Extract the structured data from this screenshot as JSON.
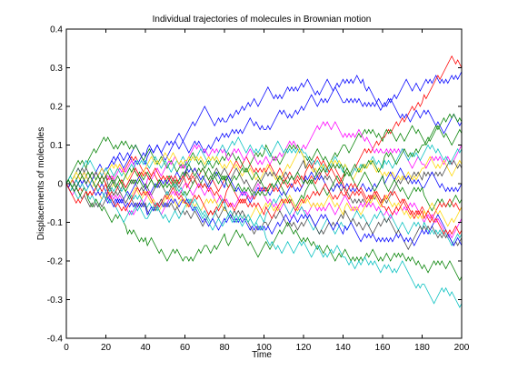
{
  "chart_data": {
    "type": "line",
    "title": "Individual trajectories of molecules in Brownian motion",
    "xlabel": "Time",
    "ylabel": "Displacements of molecules",
    "xlim": [
      0,
      200
    ],
    "ylim": [
      -0.4,
      0.4
    ],
    "xticks": [
      0,
      20,
      40,
      60,
      80,
      100,
      120,
      140,
      160,
      180,
      200
    ],
    "yticks": [
      -0.4,
      -0.3,
      -0.2,
      -0.1,
      0,
      0.1,
      0.2,
      0.3,
      0.4
    ],
    "ytick_labels": [
      "-0.4",
      "-0.3",
      "-0.2",
      "-0.1",
      "0",
      "0.1",
      "0.2",
      "0.3",
      "0.4"
    ],
    "grid": false,
    "legend": "none",
    "step_size": 0.01,
    "series": [
      {
        "color": "#0000ff",
        "values": [
          [
            0,
            0
          ],
          [
            20,
            0.05
          ],
          [
            40,
            0.08
          ],
          [
            60,
            0.12
          ],
          [
            80,
            0.17
          ],
          [
            100,
            0.23
          ],
          [
            120,
            0.25
          ],
          [
            140,
            0.27
          ],
          [
            150,
            0.26
          ],
          [
            160,
            0.19
          ],
          [
            180,
            0.25
          ],
          [
            200,
            0.29
          ]
        ]
      },
      {
        "color": "#ff0000",
        "values": [
          [
            0,
            0
          ],
          [
            20,
            0.02
          ],
          [
            40,
            0.05
          ],
          [
            60,
            0.03
          ],
          [
            80,
            0.0
          ],
          [
            100,
            0.04
          ],
          [
            120,
            0.0
          ],
          [
            140,
            0.02
          ],
          [
            150,
            0.08
          ],
          [
            160,
            0.11
          ],
          [
            180,
            0.22
          ],
          [
            200,
            0.3
          ]
        ]
      },
      {
        "color": "#0000ff",
        "values": [
          [
            0,
            0
          ],
          [
            20,
            0.03
          ],
          [
            40,
            0.06
          ],
          [
            60,
            0.1
          ],
          [
            80,
            0.12
          ],
          [
            100,
            0.15
          ],
          [
            120,
            0.19
          ],
          [
            140,
            0.22
          ],
          [
            160,
            0.2
          ],
          [
            180,
            0.18
          ],
          [
            200,
            0.16
          ]
        ]
      },
      {
        "color": "#008000",
        "values": [
          [
            0,
            0
          ],
          [
            10,
            0.05
          ],
          [
            20,
            0.11
          ],
          [
            30,
            0.11
          ],
          [
            40,
            0.07
          ],
          [
            60,
            0.06
          ],
          [
            80,
            0.06
          ],
          [
            100,
            0.09
          ],
          [
            120,
            0.08
          ],
          [
            140,
            0.11
          ],
          [
            160,
            0.12
          ],
          [
            180,
            0.12
          ],
          [
            200,
            0.15
          ]
        ]
      },
      {
        "color": "#ff00ff",
        "values": [
          [
            0,
            0
          ],
          [
            20,
            0.03
          ],
          [
            40,
            0.0
          ],
          [
            60,
            0.05
          ],
          [
            80,
            0.08
          ],
          [
            100,
            0.06
          ],
          [
            120,
            0.1
          ],
          [
            140,
            0.12
          ],
          [
            160,
            0.09
          ],
          [
            180,
            0.06
          ],
          [
            200,
            0.1
          ]
        ]
      },
      {
        "color": "#00bfbf",
        "values": [
          [
            0,
            0
          ],
          [
            20,
            0.04
          ],
          [
            40,
            0.06
          ],
          [
            60,
            0.05
          ],
          [
            80,
            0.09
          ],
          [
            100,
            0.1
          ],
          [
            120,
            0.07
          ],
          [
            140,
            0.04
          ],
          [
            160,
            0.05
          ],
          [
            180,
            0.07
          ],
          [
            200,
            0.08
          ]
        ]
      },
      {
        "color": "#ffd700",
        "values": [
          [
            0,
            0
          ],
          [
            20,
            0.02
          ],
          [
            40,
            0.04
          ],
          [
            60,
            0.07
          ],
          [
            80,
            0.05
          ],
          [
            100,
            0.03
          ],
          [
            120,
            0.06
          ],
          [
            140,
            0.04
          ],
          [
            160,
            0.02
          ],
          [
            180,
            0.05
          ],
          [
            200,
            0.06
          ]
        ]
      },
      {
        "color": "#444444",
        "values": [
          [
            0,
            0
          ],
          [
            20,
            0.01
          ],
          [
            40,
            -0.02
          ],
          [
            60,
            0.02
          ],
          [
            80,
            0.04
          ],
          [
            100,
            0.02
          ],
          [
            120,
            0.05
          ],
          [
            140,
            0.0
          ],
          [
            160,
            -0.03
          ],
          [
            180,
            0.02
          ],
          [
            200,
            0.04
          ]
        ]
      },
      {
        "color": "#0000ff",
        "values": [
          [
            0,
            0
          ],
          [
            20,
            -0.03
          ],
          [
            40,
            -0.01
          ],
          [
            60,
            0.03
          ],
          [
            80,
            0.0
          ],
          [
            100,
            -0.02
          ],
          [
            120,
            0.01
          ],
          [
            140,
            -0.02
          ],
          [
            160,
            0.01
          ],
          [
            180,
            -0.02
          ],
          [
            200,
            0.0
          ]
        ]
      },
      {
        "color": "#008000",
        "values": [
          [
            0,
            0
          ],
          [
            20,
            0.0
          ],
          [
            40,
            0.02
          ],
          [
            60,
            -0.02
          ],
          [
            80,
            0.01
          ],
          [
            100,
            0.0
          ],
          [
            120,
            -0.03
          ],
          [
            140,
            0.02
          ],
          [
            160,
            0.01
          ],
          [
            180,
            -0.02
          ],
          [
            200,
            -0.05
          ]
        ]
      },
      {
        "color": "#ff0000",
        "values": [
          [
            0,
            0
          ],
          [
            20,
            -0.01
          ],
          [
            40,
            0.03
          ],
          [
            60,
            0.0
          ],
          [
            80,
            -0.03
          ],
          [
            100,
            -0.01
          ],
          [
            120,
            0.02
          ],
          [
            140,
            -0.01
          ],
          [
            160,
            -0.04
          ],
          [
            180,
            -0.06
          ],
          [
            200,
            -0.07
          ]
        ]
      },
      {
        "color": "#ff00ff",
        "values": [
          [
            0,
            0
          ],
          [
            20,
            -0.02
          ],
          [
            40,
            -0.04
          ],
          [
            60,
            -0.01
          ],
          [
            80,
            -0.05
          ],
          [
            100,
            -0.03
          ],
          [
            120,
            -0.06
          ],
          [
            140,
            -0.04
          ],
          [
            160,
            -0.07
          ],
          [
            180,
            -0.09
          ],
          [
            200,
            -0.1
          ]
        ]
      },
      {
        "color": "#ffd700",
        "values": [
          [
            0,
            0
          ],
          [
            20,
            -0.04
          ],
          [
            40,
            -0.02
          ],
          [
            60,
            -0.05
          ],
          [
            80,
            -0.08
          ],
          [
            100,
            -0.06
          ],
          [
            120,
            -0.04
          ],
          [
            140,
            -0.07
          ],
          [
            160,
            -0.05
          ],
          [
            180,
            -0.08
          ],
          [
            200,
            -0.06
          ]
        ]
      },
      {
        "color": "#00bfbf",
        "values": [
          [
            0,
            0
          ],
          [
            20,
            -0.02
          ],
          [
            40,
            -0.05
          ],
          [
            60,
            -0.03
          ],
          [
            80,
            -0.06
          ],
          [
            100,
            -0.09
          ],
          [
            120,
            -0.07
          ],
          [
            140,
            -0.1
          ],
          [
            160,
            -0.08
          ],
          [
            180,
            -0.11
          ],
          [
            200,
            -0.13
          ]
        ]
      },
      {
        "color": "#444444",
        "values": [
          [
            0,
            0
          ],
          [
            20,
            -0.03
          ],
          [
            40,
            -0.06
          ],
          [
            60,
            -0.08
          ],
          [
            80,
            -0.06
          ],
          [
            100,
            -0.09
          ],
          [
            120,
            -0.11
          ],
          [
            140,
            -0.08
          ],
          [
            160,
            -0.1
          ],
          [
            180,
            -0.12
          ],
          [
            200,
            -0.15
          ]
        ]
      },
      {
        "color": "#0000ff",
        "values": [
          [
            0,
            0
          ],
          [
            20,
            -0.04
          ],
          [
            40,
            -0.07
          ],
          [
            60,
            -0.05
          ],
          [
            80,
            -0.09
          ],
          [
            100,
            -0.11
          ],
          [
            120,
            -0.09
          ],
          [
            140,
            -0.12
          ],
          [
            160,
            -0.14
          ],
          [
            180,
            -0.12
          ],
          [
            200,
            -0.16
          ]
        ]
      },
      {
        "color": "#008000",
        "values": [
          [
            0,
            0
          ],
          [
            10,
            -0.03
          ],
          [
            20,
            -0.07
          ],
          [
            30,
            -0.12
          ],
          [
            40,
            -0.15
          ],
          [
            50,
            -0.19
          ],
          [
            60,
            -0.2
          ],
          [
            70,
            -0.17
          ],
          [
            80,
            -0.14
          ],
          [
            100,
            -0.16
          ],
          [
            120,
            -0.14
          ],
          [
            140,
            -0.18
          ],
          [
            160,
            -0.2
          ],
          [
            180,
            -0.22
          ],
          [
            200,
            -0.24
          ]
        ]
      },
      {
        "color": "#00bfbf",
        "values": [
          [
            0,
            0
          ],
          [
            20,
            -0.03
          ],
          [
            40,
            -0.08
          ],
          [
            60,
            -0.06
          ],
          [
            80,
            -0.1
          ],
          [
            100,
            -0.13
          ],
          [
            120,
            -0.15
          ],
          [
            140,
            -0.18
          ],
          [
            160,
            -0.22
          ],
          [
            180,
            -0.27
          ],
          [
            200,
            -0.31
          ]
        ]
      },
      {
        "color": "#ff0000",
        "values": [
          [
            0,
            0
          ],
          [
            20,
            -0.01
          ],
          [
            40,
            -0.03
          ],
          [
            60,
            -0.06
          ],
          [
            80,
            -0.04
          ],
          [
            100,
            -0.07
          ],
          [
            120,
            -0.05
          ],
          [
            140,
            -0.02
          ],
          [
            160,
            -0.05
          ],
          [
            180,
            -0.08
          ],
          [
            200,
            -0.12
          ]
        ]
      },
      {
        "color": "#008000",
        "values": [
          [
            0,
            0
          ],
          [
            20,
            0.02
          ],
          [
            40,
            0.0
          ],
          [
            60,
            0.03
          ],
          [
            80,
            0.01
          ],
          [
            100,
            -0.02
          ],
          [
            120,
            0.0
          ],
          [
            140,
            0.03
          ],
          [
            160,
            0.06
          ],
          [
            180,
            0.09
          ],
          [
            200,
            0.13
          ]
        ]
      }
    ]
  }
}
